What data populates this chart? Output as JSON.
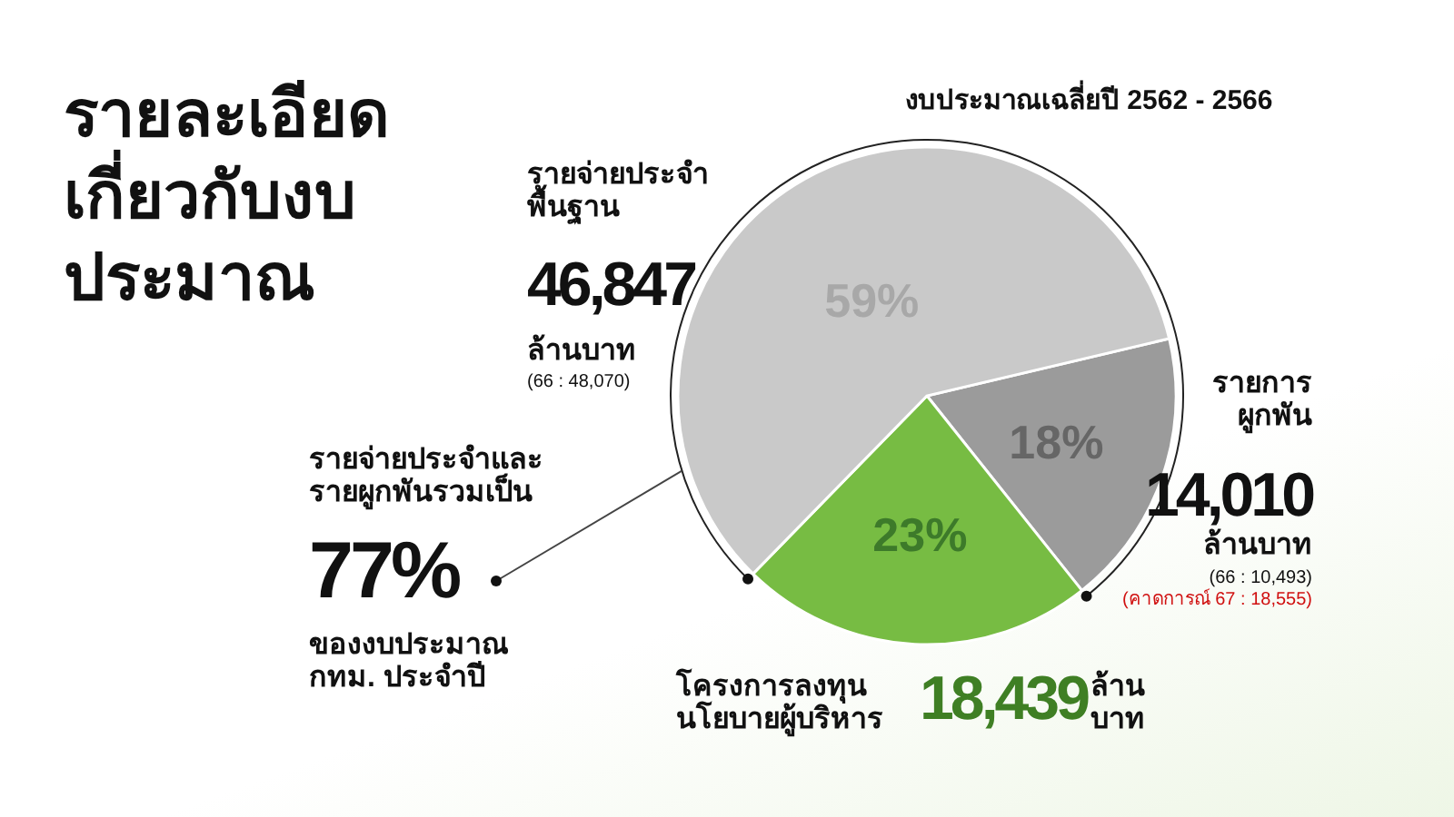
{
  "chart_data": {
    "type": "pie",
    "title": "รายละเอียด\nเกี่ยวกับงบ\nประมาณ",
    "subtitle": "งบประมาณเฉลี่ยปี 2562  - 2566",
    "categories": [
      "รายการ\nผูกพัน",
      "โครงการลงทุน\nนโยบายผู้บริหาร",
      "รายจ่ายประจำ\nพื้นฐาน"
    ],
    "values": [
      18,
      23,
      59
    ],
    "value_labels": [
      "18%",
      "23%",
      "59%"
    ],
    "colors": [
      "#9b9b9b",
      "#77bc43",
      "#c9c9c9"
    ],
    "annotations": [
      "14,010",
      "ล้านบาท",
      "(66 : 10,493)",
      "(คาดการณ์ 67 : 18,555)",
      "18,439",
      "ล้าน\nบาท",
      "46,847",
      "ล้านบาท",
      "(66 : 48,070)",
      "รายจ่ายประจำและ\nรายผูกพันรวมเป็น",
      "77%",
      "ของงบประมาณ\nกทม. ประจำปี"
    ]
  }
}
